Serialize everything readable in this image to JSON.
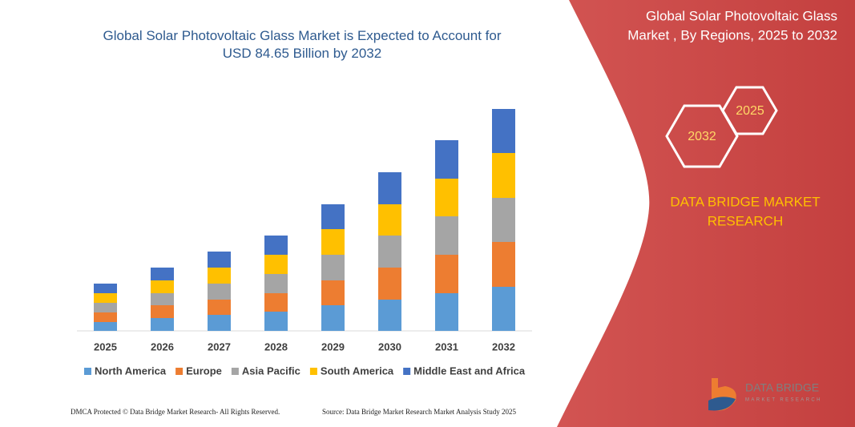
{
  "chart_data": {
    "type": "bar",
    "stacked": true,
    "title": "Global Solar Photovoltaic Glass Market is Expected to Account for USD 84.65 Billion by 2032",
    "categories": [
      "2025",
      "2026",
      "2027",
      "2028",
      "2029",
      "2030",
      "2031",
      "2032"
    ],
    "series": [
      {
        "name": "North America",
        "color": "#5b9bd5",
        "values": [
          11,
          16,
          20,
          24,
          32,
          39,
          47,
          55
        ]
      },
      {
        "name": "Europe",
        "color": "#ed7d31",
        "values": [
          12,
          16,
          19,
          23,
          31,
          40,
          48,
          56
        ]
      },
      {
        "name": "Asia Pacific",
        "color": "#a5a5a5",
        "values": [
          12,
          15,
          20,
          24,
          32,
          40,
          48,
          55
        ]
      },
      {
        "name": "South America",
        "color": "#ffc000",
        "values": [
          12,
          16,
          20,
          24,
          32,
          39,
          47,
          56
        ]
      },
      {
        "name": "Middle East and Africa",
        "color": "#4472c4",
        "values": [
          12,
          16,
          20,
          24,
          31,
          40,
          48,
          55
        ]
      }
    ],
    "ylim": [
      0,
      300
    ]
  },
  "side_panel": {
    "title": [
      "Global Solar Photovoltaic Glass",
      "Market , By Regions, 2025 to 2032"
    ],
    "hexagons": [
      "2032",
      "2025"
    ],
    "brand": [
      "DATA BRIDGE MARKET",
      "RESEARCH"
    ]
  },
  "logo": {
    "text": "DATA BRIDGE",
    "subtext": "MARKET RESEARCH"
  },
  "footer": {
    "left": "DMCA Protected © Data Bridge Market Research- All Rights Reserved.",
    "right": "Source: Data Bridge Market Research  Market Analysis Study 2025"
  }
}
